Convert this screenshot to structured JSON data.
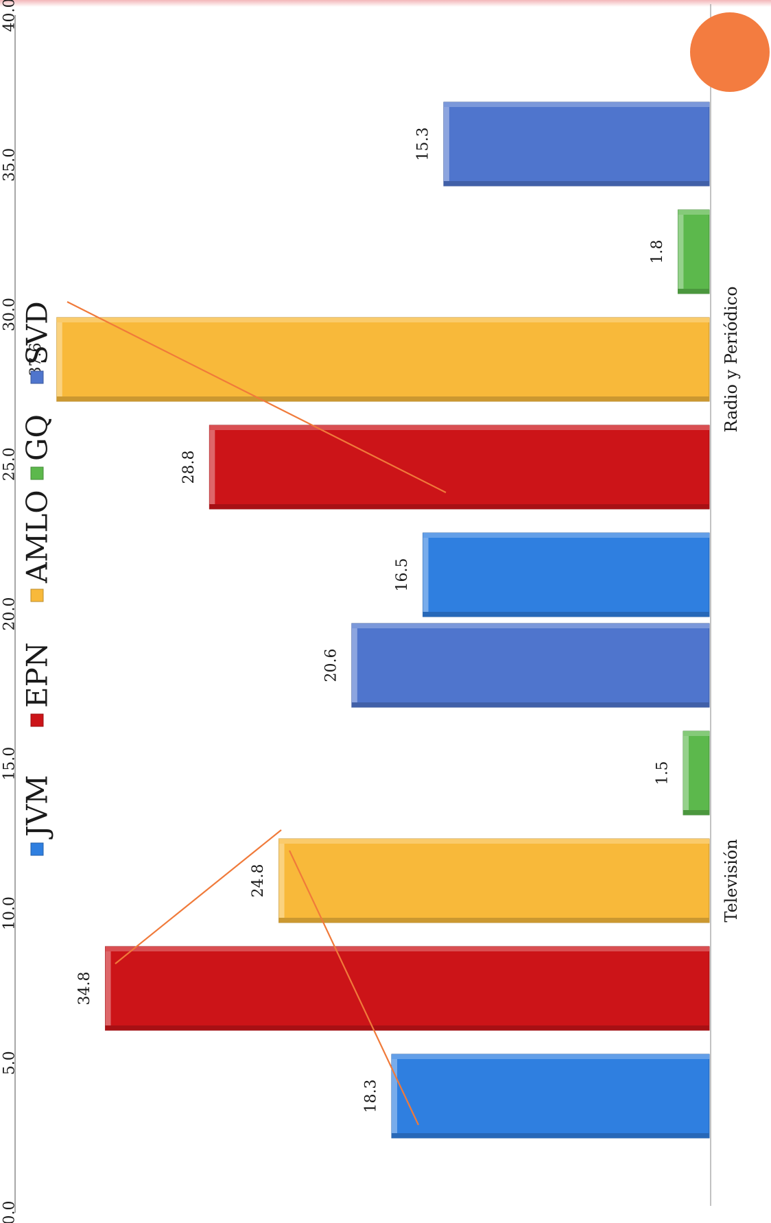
{
  "chart_data": {
    "type": "bar",
    "orientation": "horizontal (page rotated 90°)",
    "categories": [
      "Televisión",
      "Radio y Periódico"
    ],
    "series": [
      {
        "name": "JVM",
        "color": "#2f7fe0",
        "values": [
          18.3,
          16.5
        ]
      },
      {
        "name": "EPN",
        "color": "#cc1418",
        "values": [
          34.8,
          28.8
        ]
      },
      {
        "name": "AMLO",
        "color": "#f8b93a",
        "values": [
          24.8,
          37.6
        ]
      },
      {
        "name": "GQ",
        "color": "#5cb84c",
        "values": [
          1.5,
          1.8
        ]
      },
      {
        "name": "SVD",
        "color": "#4f75cd",
        "values": [
          20.6,
          15.3
        ]
      }
    ],
    "value_labels": [
      [
        "18.3",
        "16.5"
      ],
      [
        "34.8",
        "28.8"
      ],
      [
        "24.8",
        "37.6"
      ],
      [
        "1.5",
        "1.8"
      ],
      [
        "20.6",
        "15.3"
      ]
    ],
    "value_axis": {
      "range": [
        0,
        40
      ],
      "ticks": [
        0,
        5,
        10,
        15,
        20,
        25,
        30,
        35,
        40
      ],
      "tick_labels": [
        "0.0",
        "5.0",
        "10.0",
        "15.0",
        "20.0",
        "25.0",
        "30.0",
        "35.0",
        "40.0"
      ]
    },
    "grid": false,
    "legend": "top"
  }
}
